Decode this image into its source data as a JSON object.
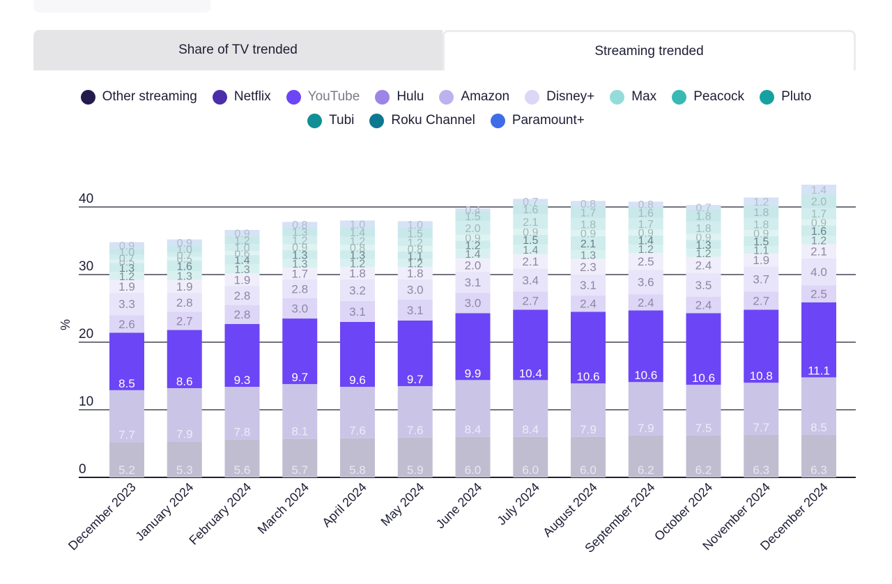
{
  "tabs": [
    {
      "label": "Share of TV trended",
      "active": false
    },
    {
      "label": "Streaming trended",
      "active": true
    }
  ],
  "legend": [
    {
      "name": "Other streaming",
      "color": "#241b4d",
      "muted": false
    },
    {
      "name": "Netflix",
      "color": "#4a2fa8",
      "muted": false
    },
    {
      "name": "YouTube",
      "color": "#6c45f6",
      "muted": true
    },
    {
      "name": "Hulu",
      "color": "#9b85e6",
      "muted": false
    },
    {
      "name": "Amazon",
      "color": "#bdb2ee",
      "muted": false
    },
    {
      "name": "Disney+",
      "color": "#dcd6f7",
      "muted": false
    },
    {
      "name": "Max",
      "color": "#93dcd9",
      "muted": false
    },
    {
      "name": "Peacock",
      "color": "#39b9b3",
      "muted": false
    },
    {
      "name": "Pluto",
      "color": "#17a0a0",
      "muted": false
    },
    {
      "name": "Tubi",
      "color": "#108f95",
      "muted": false
    },
    {
      "name": "Roku Channel",
      "color": "#0d7890",
      "muted": false
    },
    {
      "name": "Paramount+",
      "color": "#3f6de8",
      "muted": false
    }
  ],
  "chart_data": {
    "type": "bar",
    "stacked": true,
    "ylabel": "%",
    "ylim": [
      0,
      40
    ],
    "yticks": [
      0,
      10,
      20,
      30,
      40
    ],
    "categories": [
      "December 2023",
      "January 2024",
      "February 2024",
      "March 2024",
      "April 2024",
      "May 2024",
      "June 2024",
      "July 2024",
      "August 2024",
      "September 2024",
      "October 2024",
      "November 2024",
      "December 2024"
    ],
    "series": [
      {
        "name": "Other streaming",
        "color": "#c1bdd1",
        "label_color": "#e9e7f1",
        "values": [
          5.2,
          5.3,
          5.6,
          5.7,
          5.8,
          5.9,
          6.0,
          6.0,
          6.0,
          6.2,
          6.2,
          6.3,
          6.3
        ]
      },
      {
        "name": "Netflix",
        "color": "#cac4e7",
        "label_color": "#eeecf8",
        "values": [
          7.7,
          7.9,
          7.8,
          8.1,
          7.6,
          7.6,
          8.4,
          8.4,
          7.9,
          7.9,
          7.5,
          7.7,
          8.5
        ]
      },
      {
        "name": "YouTube",
        "color": "#6c45f6",
        "label_color": "#ffffff",
        "values": [
          8.5,
          8.6,
          9.3,
          9.7,
          9.6,
          9.7,
          9.9,
          10.4,
          10.6,
          10.6,
          10.6,
          10.8,
          11.1
        ]
      },
      {
        "name": "Hulu",
        "color": "#ddd6f6",
        "label_color": "#8d88a3",
        "values": [
          2.6,
          2.7,
          2.8,
          3.0,
          3.1,
          3.1,
          3.0,
          2.7,
          2.4,
          2.4,
          2.4,
          2.7,
          2.5
        ]
      },
      {
        "name": "Amazon",
        "color": "#e8e4f9",
        "label_color": "#8d88a3",
        "values": [
          3.3,
          2.8,
          2.8,
          2.8,
          3.2,
          3.0,
          3.1,
          3.4,
          3.1,
          3.6,
          3.5,
          3.7,
          4.0
        ]
      },
      {
        "name": "Disney+",
        "color": "#f1eefb",
        "label_color": "#8d88a3",
        "values": [
          1.9,
          1.9,
          1.9,
          1.7,
          1.8,
          1.8,
          2.0,
          2.1,
          2.3,
          2.5,
          2.4,
          1.9,
          2.1
        ]
      },
      {
        "name": "Max",
        "color": "#d8f1f0",
        "label_color": "#7e8c95",
        "values": [
          1.2,
          1.3,
          1.3,
          1.3,
          1.2,
          1.2,
          1.4,
          1.4,
          1.3,
          1.2,
          1.2,
          1.1,
          1.2
        ]
      },
      {
        "name": "Peacock",
        "color": "#cdeceb",
        "label_color": "#6d7d88",
        "values": [
          1.3,
          1.6,
          1.4,
          1.3,
          1.3,
          1.1,
          1.2,
          1.5,
          2.1,
          1.4,
          1.3,
          1.5,
          1.6
        ]
      },
      {
        "name": "Pluto",
        "color": "#dff3f2",
        "label_color": "#a2b6ba",
        "values": [
          0.5,
          0.5,
          0.6,
          0.9,
          0.8,
          0.8,
          0.9,
          0.9,
          0.9,
          0.9,
          0.9,
          0.9,
          0.9
        ]
      },
      {
        "name": "Tubi",
        "color": "#d2edee",
        "label_color": "#a2b6ba",
        "values": [
          0.7,
          0.7,
          1.0,
          1.2,
          1.2,
          1.2,
          2.0,
          2.1,
          1.8,
          1.7,
          1.8,
          1.8,
          1.7
        ]
      },
      {
        "name": "Roku Channel",
        "color": "#c8e8ea",
        "label_color": "#a2b6ba",
        "values": [
          1.0,
          1.0,
          1.2,
          1.3,
          1.4,
          1.5,
          1.5,
          1.6,
          1.7,
          1.6,
          1.8,
          1.8,
          2.0
        ]
      },
      {
        "name": "Paramount+",
        "color": "#d6e2f5",
        "label_color": "#b1bccd",
        "values": [
          0.9,
          0.9,
          0.9,
          0.8,
          1.0,
          1.0,
          0.4,
          0.7,
          0.8,
          0.8,
          0.7,
          1.2,
          1.4
        ]
      }
    ]
  }
}
